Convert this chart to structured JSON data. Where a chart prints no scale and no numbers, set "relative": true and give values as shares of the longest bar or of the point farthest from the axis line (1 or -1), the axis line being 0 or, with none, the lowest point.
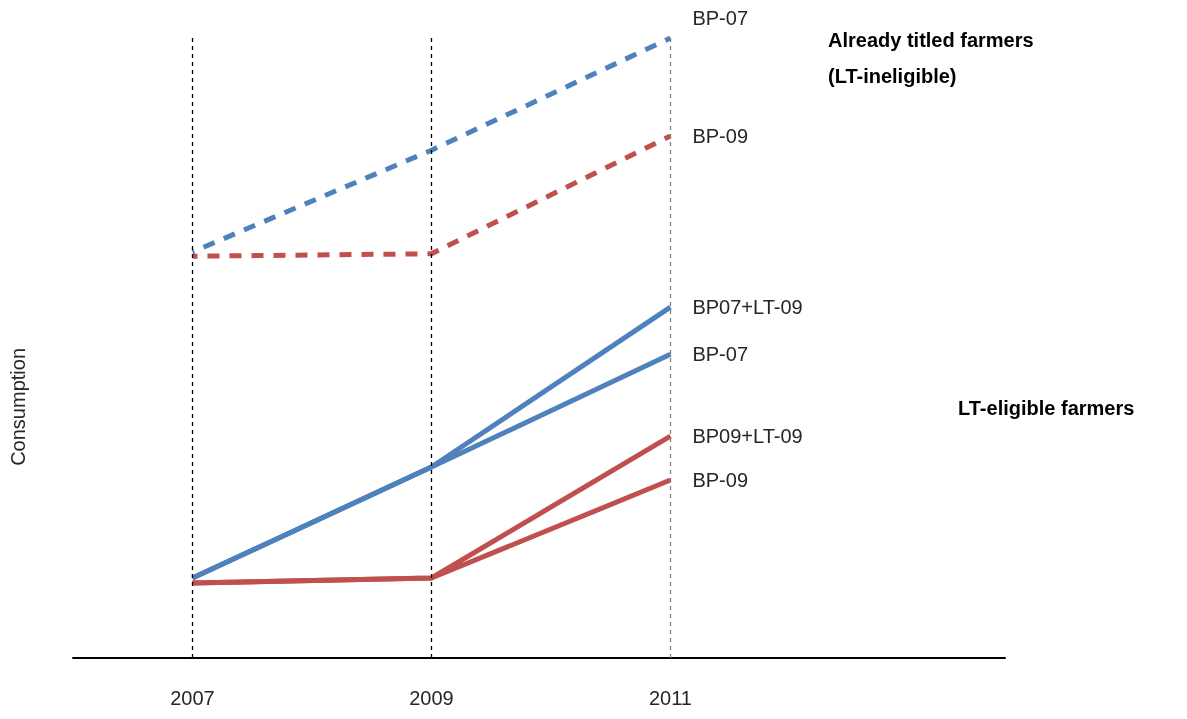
{
  "chart_data": {
    "type": "line",
    "relative": true,
    "ylabel": "Consumption",
    "x": [
      2007,
      2009,
      2011
    ],
    "xlim": [
      2006,
      2013.8
    ],
    "xticks": [
      2007,
      2009,
      2011
    ],
    "grid": false,
    "legend": false,
    "marker": "none",
    "series": [
      {
        "name": "BP-07",
        "color": "#4f81bd",
        "line_style": "dashed",
        "values": [
          0.655,
          0.819,
          1
        ]
      },
      {
        "name": "BP-09",
        "color": "#c0504d",
        "line_style": "dashed",
        "values": [
          0.648,
          0.652,
          0.842
        ]
      },
      {
        "name": "BP07+LT-09",
        "color": "#4f81bd",
        "line_style": "solid",
        "values": [
          0.129,
          0.308,
          0.566
        ]
      },
      {
        "name": "BP-07",
        "color": "#4f81bd",
        "line_style": "solid",
        "values": [
          0.129,
          0.308,
          0.49
        ]
      },
      {
        "name": "BP09+LT-09",
        "color": "#c0504d",
        "line_style": "solid",
        "values": [
          0.121,
          0.129,
          0.358
        ]
      },
      {
        "name": "BP-09",
        "color": "#c0504d",
        "line_style": "solid",
        "values": [
          0.121,
          0.129,
          0.287
        ]
      }
    ],
    "ref_lines": [
      {
        "axis": "x",
        "value": 2007,
        "color": "#000000",
        "line_style": "dashed"
      },
      {
        "axis": "x",
        "value": 2009,
        "color": "#000000",
        "line_style": "dashed"
      },
      {
        "axis": "x",
        "value": 2011,
        "color": "#808080",
        "line_style": "dashed"
      }
    ],
    "annotations": [
      "Already titled farmers (LT-ineligible)",
      "LT-eligible farmers"
    ]
  }
}
